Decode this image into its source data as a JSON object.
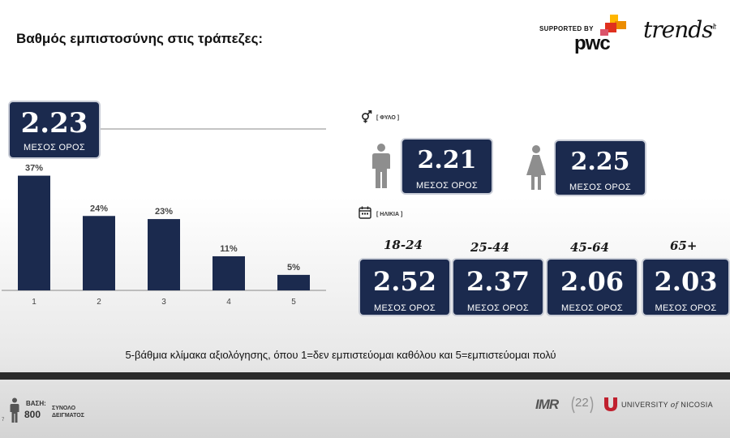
{
  "header": {
    "title": "Βαθμός εμπιστοσύνης στις τράπεζες:",
    "supported_by": "SUPPORTED BY",
    "pwc": "pwc",
    "trends": "trends",
    "trends_mark": "lt"
  },
  "overall": {
    "value": "2.23",
    "label": "ΜΕΣΟΣ ΟΡΟΣ"
  },
  "gender": {
    "tag": "[ ΦΥΛΟ ]",
    "male": {
      "value": "2.21",
      "label": "ΜΕΣΟΣ ΟΡΟΣ"
    },
    "female": {
      "value": "2.25",
      "label": "ΜΕΣΟΣ ΟΡΟΣ"
    }
  },
  "age": {
    "tag": "[ ΗΛΙΚΙΑ ]",
    "groups": [
      {
        "range": "18-24",
        "value": "2.52",
        "label": "ΜΕΣΟΣ ΟΡΟΣ"
      },
      {
        "range": "25-44",
        "value": "2.37",
        "label": "ΜΕΣΟΣ ΟΡΟΣ"
      },
      {
        "range": "45-64",
        "value": "2.06",
        "label": "ΜΕΣΟΣ ΟΡΟΣ"
      },
      {
        "range": "65+",
        "value": "2.03",
        "label": "ΜΕΣΟΣ ΟΡΟΣ"
      }
    ]
  },
  "caption": "5-βάθμια κλίμακα αξιολόγησης, όπου 1=δεν εμπιστεύομαι καθόλου και 5=εμπιστεύομαι πολύ",
  "footer": {
    "base_title": "ΒΑΣΗ:",
    "base_num": "800",
    "base_desc_1": "ΣΥΝΟΛΟ",
    "base_desc_2": "ΔΕΙΓΜΑΤΟΣ",
    "page": "7",
    "imr": "IMR",
    "imr_years": "22",
    "university": "UNIVERSITY",
    "university_of": "of",
    "university_name": "NICOSIA"
  },
  "colors": {
    "bar": "#1b2a4e",
    "box": "#1b2a4e",
    "pwc_orange": "#e0301e"
  },
  "chart_data": {
    "type": "bar",
    "title": "Βαθμός εμπιστοσύνης στις τράπεζες:",
    "categories": [
      "1",
      "2",
      "3",
      "4",
      "5"
    ],
    "values": [
      37,
      24,
      23,
      11,
      5
    ],
    "value_labels": [
      "37%",
      "24%",
      "23%",
      "11%",
      "5%"
    ],
    "unit": "%",
    "xlabel": "",
    "ylabel": "",
    "ylim": [
      0,
      45
    ],
    "grid": false,
    "mean": 2.23
  }
}
